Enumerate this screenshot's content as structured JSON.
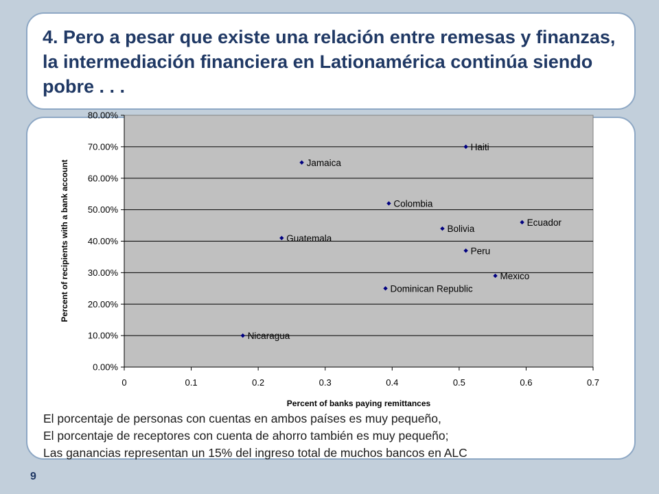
{
  "slide": {
    "title": "4. Pero a pesar que existe una relación entre remesas y finanzas, la intermediación financiera en Lationamérica continúa siendo pobre . . .",
    "body_lines": [
      "El porcentaje de personas con cuentas en ambos países es muy pequeño,",
      "El porcentaje de receptores con cuenta de ahorro también es muy pequeño;",
      "Las ganancias representan un 15% del ingreso total de muchos bancos en ALC"
    ],
    "page_number": "9"
  },
  "colors": {
    "plot_area": "#c0c0c0",
    "marker": "#000080",
    "title": "#1f3864",
    "background": "#c2cfdb"
  },
  "chart_data": {
    "type": "scatter",
    "title": "",
    "xlabel": "Percent of banks paying remittances",
    "ylabel": "Percent of recipients with a bank account",
    "xlim": [
      0,
      0.7
    ],
    "ylim": [
      0,
      0.8
    ],
    "x_ticks": [
      "0",
      "0.1",
      "0.2",
      "0.3",
      "0.4",
      "0.5",
      "0.6",
      "0.7"
    ],
    "y_ticks": [
      "0.00%",
      "10.00%",
      "20.00%",
      "30.00%",
      "40.00%",
      "50.00%",
      "60.00%",
      "70.00%",
      "80.00%"
    ],
    "grid": "horizontal",
    "points": [
      {
        "label": "Haiti",
        "x": 0.51,
        "y": 0.7
      },
      {
        "label": "Jamaica",
        "x": 0.265,
        "y": 0.65
      },
      {
        "label": "Colombia",
        "x": 0.395,
        "y": 0.52
      },
      {
        "label": "Ecuador",
        "x": 0.594,
        "y": 0.46
      },
      {
        "label": "Bolivia",
        "x": 0.475,
        "y": 0.44
      },
      {
        "label": "Guatemala",
        "x": 0.235,
        "y": 0.41
      },
      {
        "label": "Peru",
        "x": 0.51,
        "y": 0.37
      },
      {
        "label": "Mexico",
        "x": 0.554,
        "y": 0.29
      },
      {
        "label": "Dominican Republic",
        "x": 0.39,
        "y": 0.25
      },
      {
        "label": "Nicaragua",
        "x": 0.177,
        "y": 0.1
      }
    ]
  }
}
